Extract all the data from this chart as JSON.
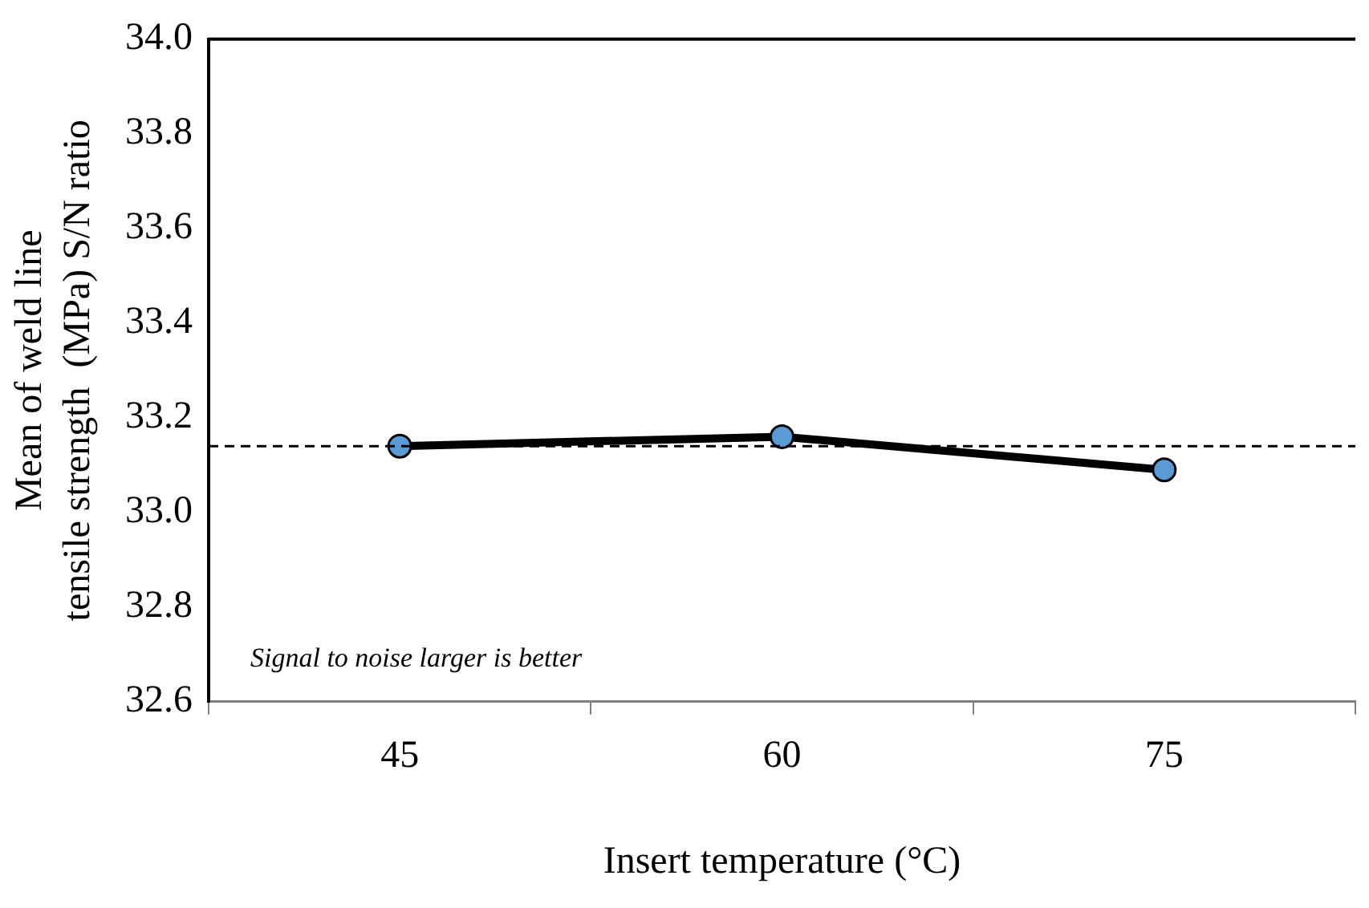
{
  "chart_data": {
    "type": "line",
    "xlabel": "Insert temperature (°C)",
    "ylabel": "Mean of weld line\ntensile strength  (MPa) S/N ratio",
    "categories": [
      "45",
      "60",
      "75"
    ],
    "series": [
      {
        "color": "#000000",
        "values": [
          33.14,
          33.16,
          33.09
        ]
      }
    ],
    "marker": "circle",
    "line_style": "solid",
    "ylim": [
      32.6,
      34.0
    ],
    "yticks": [
      32.6,
      32.8,
      {
        "value": 33.0,
        "label": "33.0"
      },
      33.2,
      33.4,
      33.6,
      33.8,
      {
        "value": 34.0,
        "label": "34.0"
      }
    ],
    "ref_lines": [
      {
        "axis": "y",
        "value": 33.14,
        "color": "#000000",
        "line_style": "dashed"
      }
    ],
    "annotations": [
      "Signal to noise larger is better"
    ],
    "grid": false,
    "legend": false
  }
}
